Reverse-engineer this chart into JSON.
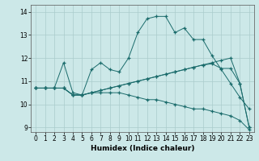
{
  "xlabel": "Humidex (Indice chaleur)",
  "background_color": "#cce8e8",
  "grid_color": "#aacccc",
  "line_color": "#1a6b6b",
  "xlim": [
    -0.5,
    23.5
  ],
  "ylim": [
    8.8,
    14.3
  ],
  "xticks": [
    0,
    1,
    2,
    3,
    4,
    5,
    6,
    7,
    8,
    9,
    10,
    11,
    12,
    13,
    14,
    15,
    16,
    17,
    18,
    19,
    20,
    21,
    22,
    23
  ],
  "yticks": [
    9,
    10,
    11,
    12,
    13,
    14
  ],
  "series": [
    {
      "x": [
        0,
        1,
        2,
        3,
        4,
        5,
        6,
        7,
        8,
        9,
        10,
        11,
        12,
        13,
        14,
        15,
        16,
        17,
        18,
        19,
        20,
        21,
        22,
        23
      ],
      "y": [
        10.7,
        10.7,
        10.7,
        11.8,
        10.5,
        10.4,
        11.5,
        11.8,
        11.5,
        11.4,
        12.0,
        13.1,
        13.7,
        13.8,
        13.8,
        13.1,
        13.3,
        12.8,
        12.8,
        12.1,
        11.5,
        10.9,
        10.3,
        9.8
      ]
    },
    {
      "x": [
        0,
        1,
        2,
        3,
        4,
        5,
        6,
        7,
        8,
        9,
        10,
        11,
        12,
        13,
        14,
        15,
        16,
        17,
        18,
        19,
        20,
        21,
        22,
        23
      ],
      "y": [
        10.7,
        10.7,
        10.7,
        10.7,
        10.4,
        10.4,
        10.5,
        10.6,
        10.7,
        10.8,
        10.9,
        11.0,
        11.1,
        11.2,
        11.3,
        11.4,
        11.5,
        11.6,
        11.7,
        11.8,
        11.9,
        12.0,
        10.9,
        9.0
      ]
    },
    {
      "x": [
        0,
        1,
        2,
        3,
        4,
        5,
        6,
        7,
        8,
        9,
        10,
        11,
        12,
        13,
        14,
        15,
        16,
        17,
        18,
        19,
        20,
        21,
        22,
        23
      ],
      "y": [
        10.7,
        10.7,
        10.7,
        10.7,
        10.4,
        10.4,
        10.5,
        10.6,
        10.7,
        10.8,
        10.9,
        11.0,
        11.1,
        11.2,
        11.3,
        11.4,
        11.5,
        11.6,
        11.7,
        11.75,
        11.55,
        11.55,
        10.9,
        9.0
      ]
    },
    {
      "x": [
        0,
        1,
        2,
        3,
        4,
        5,
        6,
        7,
        8,
        9,
        10,
        11,
        12,
        13,
        14,
        15,
        16,
        17,
        18,
        19,
        20,
        21,
        22,
        23
      ],
      "y": [
        10.7,
        10.7,
        10.7,
        10.7,
        10.4,
        10.4,
        10.5,
        10.5,
        10.5,
        10.5,
        10.4,
        10.3,
        10.2,
        10.2,
        10.1,
        10.0,
        9.9,
        9.8,
        9.8,
        9.7,
        9.6,
        9.5,
        9.3,
        8.9
      ]
    }
  ]
}
